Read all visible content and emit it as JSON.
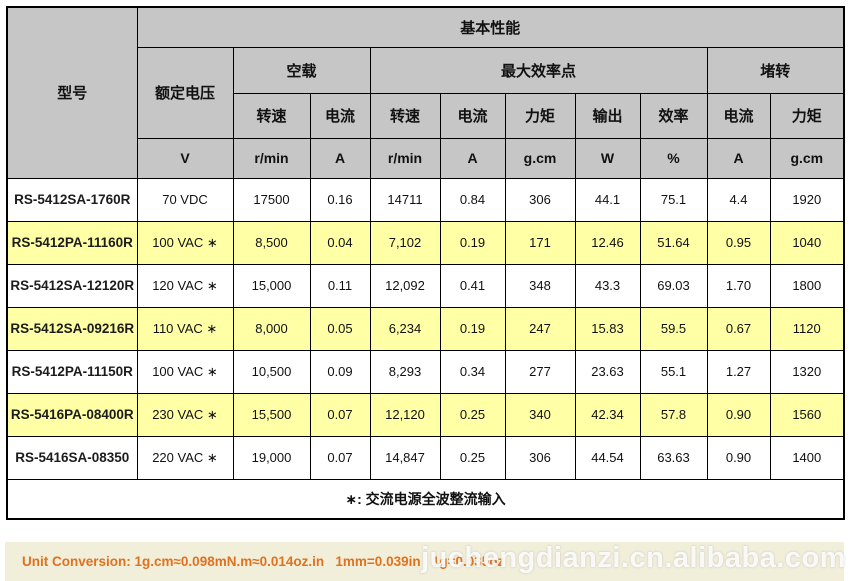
{
  "colors": {
    "header_bg": "#c6c6c6",
    "highlight_row_bg": "#ffffa6",
    "grid_border": "#000000",
    "bottom_bar_bg": "#f1efda",
    "bottom_bar_text": "#e0711f",
    "watermark_text": "#ffffff"
  },
  "table": {
    "corner_label": "型号",
    "basic_performance_label": "基本性能",
    "rated_voltage_label": "额定电压",
    "groups": [
      {
        "label": "空载",
        "span": 2
      },
      {
        "label": "最大效率点",
        "span": 5
      },
      {
        "label": "堵转",
        "span": 2
      }
    ],
    "subcolumns": [
      "转速",
      "电流",
      "转速",
      "电流",
      "力矩",
      "输出",
      "效率",
      "电流",
      "力矩"
    ],
    "units": [
      "V",
      "r/min",
      "A",
      "r/min",
      "A",
      "g.cm",
      "W",
      "%",
      "A",
      "g.cm"
    ],
    "rows": [
      {
        "model": "RS-5412SA-1760R",
        "voltage": "70 VDC",
        "values": [
          "17500",
          "0.16",
          "14711",
          "0.84",
          "306",
          "44.1",
          "75.1",
          "4.4",
          "1920"
        ],
        "highlighted": false
      },
      {
        "model": "RS-5412PA-11160R",
        "voltage": "100 VAC ∗",
        "values": [
          "8,500",
          "0.04",
          "7,102",
          "0.19",
          "171",
          "12.46",
          "51.64",
          "0.95",
          "1040"
        ],
        "highlighted": true
      },
      {
        "model": "RS-5412SA-12120R",
        "voltage": "120 VAC ∗",
        "values": [
          "15,000",
          "0.11",
          "12,092",
          "0.41",
          "348",
          "43.3",
          "69.03",
          "1.70",
          "1800"
        ],
        "highlighted": false
      },
      {
        "model": "RS-5412SA-09216R",
        "voltage": "110 VAC ∗",
        "values": [
          "8,000",
          "0.05",
          "6,234",
          "0.19",
          "247",
          "15.83",
          "59.5",
          "0.67",
          "1120"
        ],
        "highlighted": true
      },
      {
        "model": "RS-5412PA-11150R",
        "voltage": "100 VAC ∗",
        "values": [
          "10,500",
          "0.09",
          "8,293",
          "0.34",
          "277",
          "23.63",
          "55.1",
          "1.27",
          "1320"
        ],
        "highlighted": false
      },
      {
        "model": "RS-5416PA-08400R",
        "voltage": "230 VAC ∗",
        "values": [
          "15,500",
          "0.07",
          "12,120",
          "0.25",
          "340",
          "42.34",
          "57.8",
          "0.90",
          "1560"
        ],
        "highlighted": true
      },
      {
        "model": "RS-5416SA-08350",
        "voltage": "220 VAC ∗",
        "values": [
          "19,000",
          "0.07",
          "14,847",
          "0.25",
          "306",
          "44.54",
          "63.63",
          "0.90",
          "1400"
        ],
        "highlighted": false
      }
    ],
    "footnote": "∗: 交流电源全波整流输入"
  },
  "bottom_bar": {
    "text": "Unit Conversion: 1g.cm≈0.098mN.m≈0.014oz.in   1mm=0.039in   1g=0.035oz"
  },
  "watermark": "juchengdianzi.cn.alibaba.com"
}
